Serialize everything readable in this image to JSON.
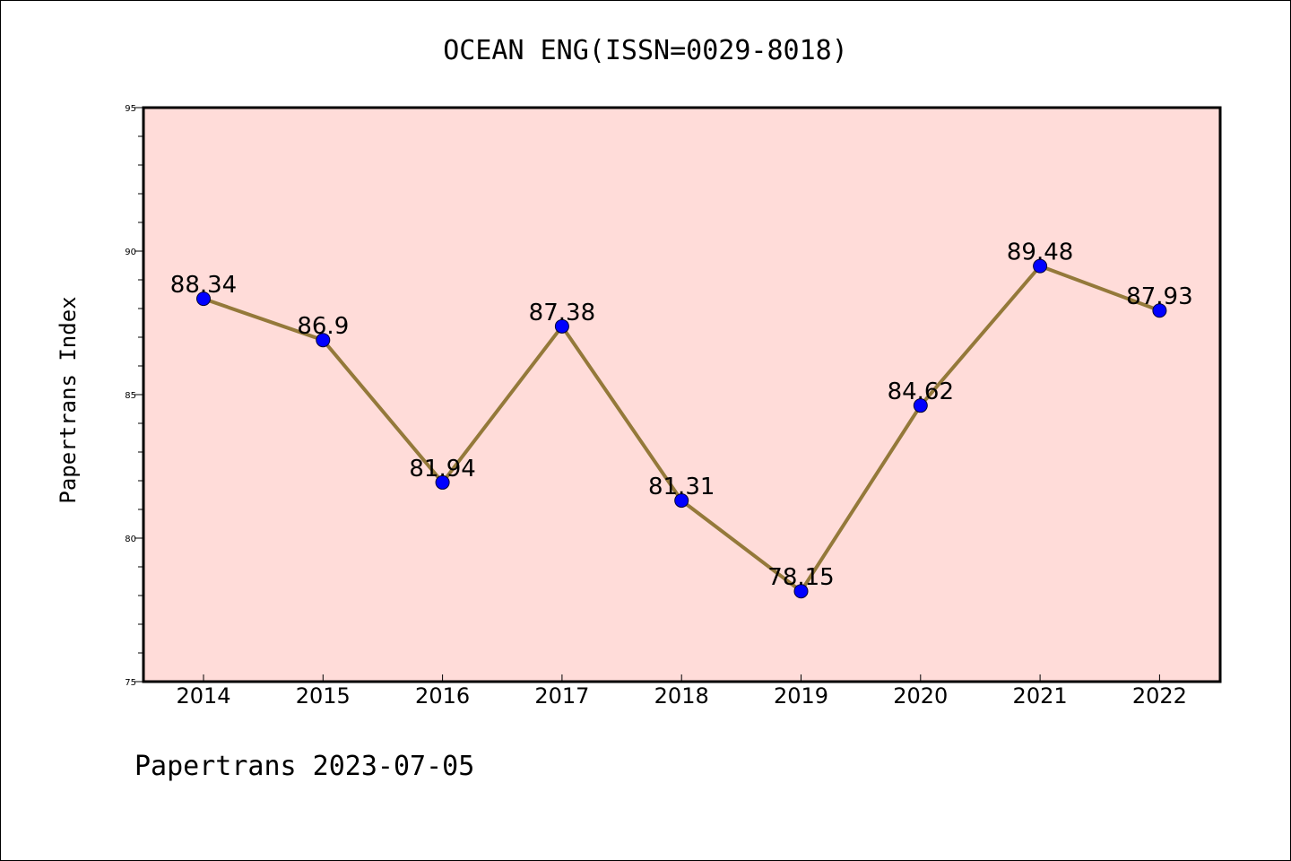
{
  "chart_data": {
    "type": "line",
    "title": "OCEAN ENG(ISSN=0029-8018)",
    "ylabel": "Papertrans Index",
    "xlabel": "",
    "categories": [
      "2014",
      "2015",
      "2016",
      "2017",
      "2018",
      "2019",
      "2020",
      "2021",
      "2022"
    ],
    "series": [
      {
        "values": [
          88.34,
          86.9,
          81.94,
          87.38,
          81.31,
          78.15,
          84.62,
          89.48,
          87.93
        ],
        "labels": [
          "88.34",
          "86.9",
          "81.94",
          "87.38",
          "81.31",
          "78.15",
          "84.62",
          "89.48",
          "87.93"
        ]
      }
    ],
    "ylim": [
      75,
      95
    ],
    "yticks": [
      "75",
      "80",
      "85",
      "90",
      "95"
    ],
    "grid": false,
    "colors": {
      "plot_background": "#ffdcd9",
      "line": "#94793a",
      "marker": "#0000ff"
    }
  },
  "footer": "Papertrans 2023-07-05"
}
